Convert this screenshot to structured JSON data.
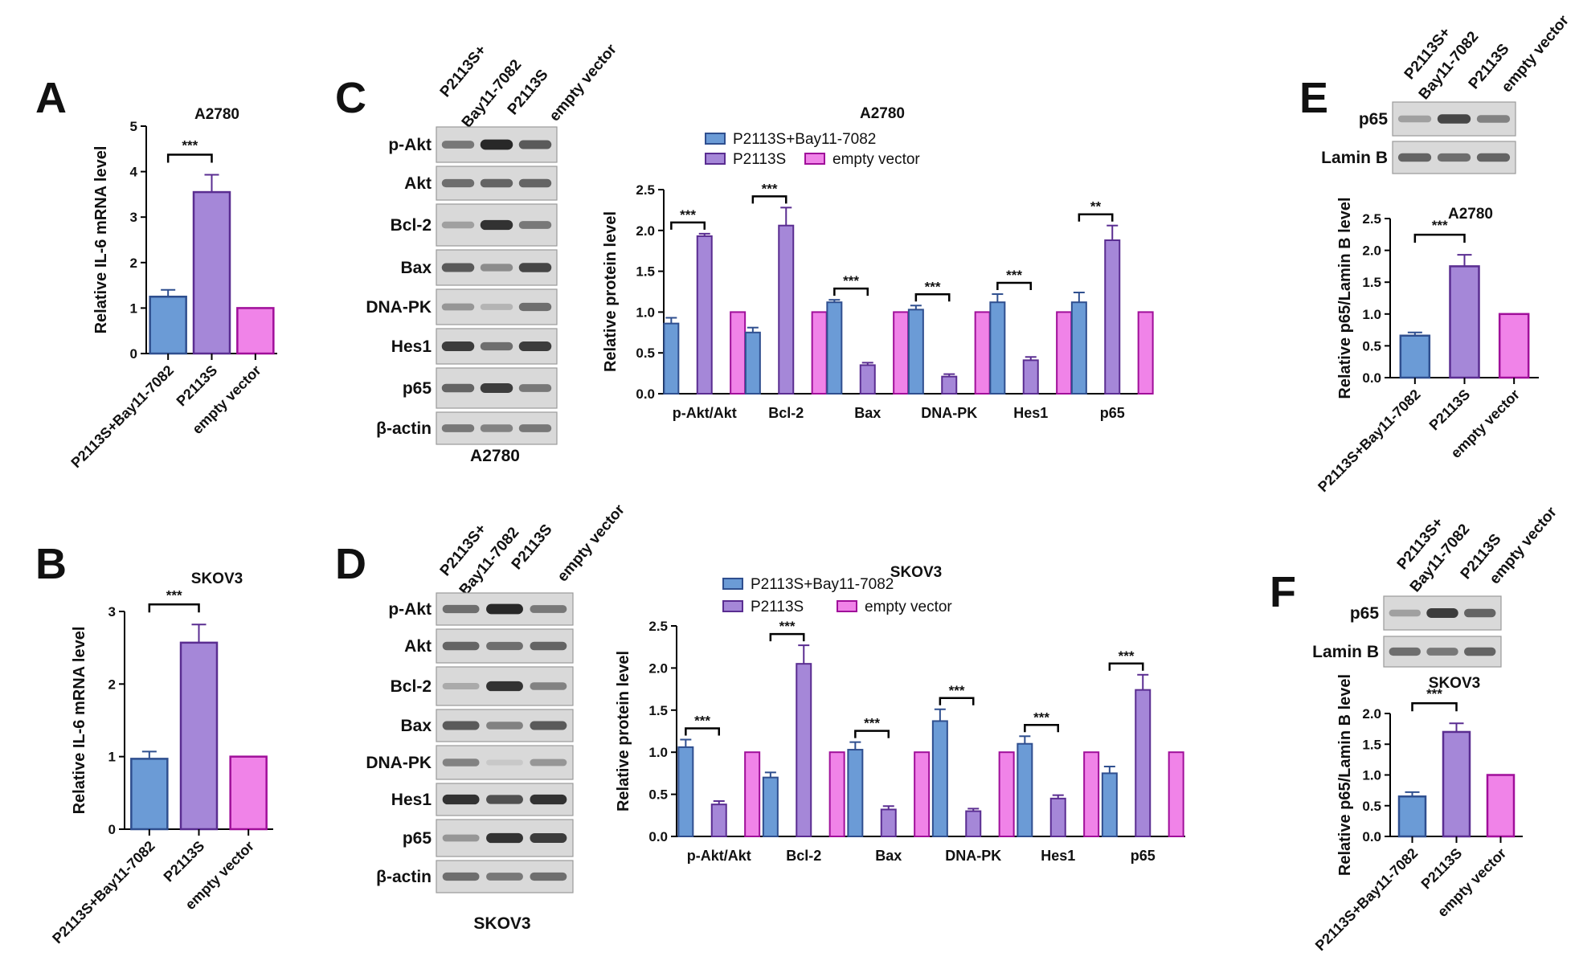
{
  "panel_letters": [
    "A",
    "B",
    "C",
    "D",
    "E",
    "F"
  ],
  "colors": {
    "bay": "#6b9bd6",
    "p2113s": "#a587d8",
    "ev": "#f083e8",
    "bay_stroke": "#2f4f8f",
    "p2113s_stroke": "#5a2d91",
    "ev_stroke": "#a00f9a"
  },
  "blots": [
    {
      "id": "C",
      "cell_label": "A2780",
      "lanes": [
        "P2113S+",
        "Bay11-7082",
        "P2113S",
        "empty vector"
      ],
      "rows": [
        {
          "label": "p-Akt",
          "intensities": [
            0.55,
            0.95,
            0.7
          ]
        },
        {
          "label": "Akt",
          "intensities": [
            0.6,
            0.65,
            0.65
          ]
        },
        {
          "label": "Bcl-2",
          "intensities": [
            0.35,
            0.9,
            0.55
          ]
        },
        {
          "label": "Bax",
          "intensities": [
            0.7,
            0.45,
            0.8
          ]
        },
        {
          "label": "DNA-PK",
          "intensities": [
            0.4,
            0.25,
            0.6
          ]
        },
        {
          "label": "Hes1",
          "intensities": [
            0.85,
            0.6,
            0.85
          ]
        },
        {
          "label": "p65",
          "intensities": [
            0.65,
            0.85,
            0.55
          ]
        },
        {
          "label": "β-actin",
          "intensities": [
            0.55,
            0.5,
            0.55
          ]
        }
      ]
    },
    {
      "id": "D",
      "cell_label": "SKOV3",
      "lanes": [
        "P2113S+",
        "Bay11-7082",
        "P2113S",
        "empty vector"
      ],
      "rows": [
        {
          "label": "p-Akt",
          "intensities": [
            0.6,
            0.95,
            0.55
          ]
        },
        {
          "label": "Akt",
          "intensities": [
            0.65,
            0.6,
            0.65
          ]
        },
        {
          "label": "Bcl-2",
          "intensities": [
            0.3,
            0.9,
            0.5
          ]
        },
        {
          "label": "Bax",
          "intensities": [
            0.7,
            0.5,
            0.7
          ]
        },
        {
          "label": "DNA-PK",
          "intensities": [
            0.5,
            0.15,
            0.4
          ]
        },
        {
          "label": "Hes1",
          "intensities": [
            0.9,
            0.75,
            0.9
          ]
        },
        {
          "label": "p65",
          "intensities": [
            0.4,
            0.9,
            0.85
          ]
        },
        {
          "label": "β-actin",
          "intensities": [
            0.6,
            0.55,
            0.6
          ]
        }
      ]
    },
    {
      "id": "E",
      "cell_label": "",
      "lanes": [
        "P2113S+",
        "Bay11-7082",
        "P2113S",
        "empty vector"
      ],
      "rows": [
        {
          "label": "p65",
          "intensities": [
            0.35,
            0.8,
            0.5
          ]
        },
        {
          "label": "Lamin B",
          "intensities": [
            0.65,
            0.6,
            0.65
          ]
        }
      ]
    },
    {
      "id": "F",
      "cell_label": "",
      "lanes": [
        "P2113S+",
        "Bay11-7082",
        "P2113S",
        "empty vector"
      ],
      "rows": [
        {
          "label": "p65",
          "intensities": [
            0.35,
            0.85,
            0.65
          ]
        },
        {
          "label": "Lamin B",
          "intensities": [
            0.6,
            0.55,
            0.65
          ]
        }
      ]
    }
  ],
  "chart_data": [
    {
      "id": "A",
      "type": "bar",
      "title": "A2780",
      "ylabel": "Relative IL-6 mRNA level",
      "categories": [
        "P2113S+Bay11-7082",
        "P2113S",
        "empty vector"
      ],
      "values": [
        1.25,
        3.55,
        1.0
      ],
      "errors": [
        0.15,
        0.38,
        0.0
      ],
      "ylim": [
        0,
        5
      ],
      "yticks": [
        0,
        1,
        2,
        3,
        4,
        5
      ],
      "significance": [
        {
          "from": 0,
          "to": 1,
          "label": "***"
        }
      ]
    },
    {
      "id": "B",
      "type": "bar",
      "title": "SKOV3",
      "ylabel": "Relative IL-6 mRNA level",
      "categories": [
        "P2113S+Bay11-7082",
        "P2113S",
        "empty vector"
      ],
      "values": [
        0.97,
        2.57,
        1.0
      ],
      "errors": [
        0.1,
        0.25,
        0.0
      ],
      "ylim": [
        0,
        3
      ],
      "yticks": [
        0,
        1,
        2,
        3
      ],
      "significance": [
        {
          "from": 0,
          "to": 1,
          "label": "***"
        }
      ]
    },
    {
      "id": "C",
      "type": "bar",
      "title": "A2780",
      "ylabel": "Relative protein level",
      "categories": [
        "p-Akt/Akt",
        "Bcl-2",
        "Bax",
        "DNA-PK",
        "Hes1",
        "p65"
      ],
      "legend_placement": "top",
      "series": [
        {
          "name": "P2113S+Bay11-7082",
          "values": [
            0.86,
            0.75,
            1.12,
            1.03,
            1.12,
            1.12
          ],
          "errors": [
            0.07,
            0.06,
            0.03,
            0.05,
            0.1,
            0.12
          ]
        },
        {
          "name": "P2113S",
          "values": [
            1.93,
            2.06,
            0.35,
            0.21,
            0.41,
            1.88
          ],
          "errors": [
            0.03,
            0.22,
            0.03,
            0.03,
            0.04,
            0.18
          ]
        },
        {
          "name": "empty vector",
          "values": [
            1.0,
            1.0,
            1.0,
            1.0,
            1.0,
            1.0
          ],
          "errors": [
            0,
            0,
            0,
            0,
            0,
            0
          ]
        }
      ],
      "ylim": [
        0,
        2.5
      ],
      "yticks": [
        0.0,
        0.5,
        1.0,
        1.5,
        2.0,
        2.5
      ],
      "significance": [
        {
          "cat": 0,
          "label": "***"
        },
        {
          "cat": 1,
          "label": "***"
        },
        {
          "cat": 2,
          "label": "***"
        },
        {
          "cat": 3,
          "label": "***"
        },
        {
          "cat": 4,
          "label": "***"
        },
        {
          "cat": 5,
          "label": "**"
        }
      ]
    },
    {
      "id": "D",
      "type": "bar",
      "title": "SKOV3",
      "ylabel": "Relative protein level",
      "categories": [
        "p-Akt/Akt",
        "Bcl-2",
        "Bax",
        "DNA-PK",
        "Hes1",
        "p65"
      ],
      "legend_placement": "top",
      "series": [
        {
          "name": "P2113S+Bay11-7082",
          "values": [
            1.06,
            0.7,
            1.03,
            1.37,
            1.1,
            0.75
          ],
          "errors": [
            0.09,
            0.06,
            0.09,
            0.14,
            0.09,
            0.08
          ]
        },
        {
          "name": "P2113S",
          "values": [
            0.38,
            2.05,
            0.32,
            0.3,
            0.45,
            1.74
          ],
          "errors": [
            0.04,
            0.22,
            0.04,
            0.03,
            0.04,
            0.18
          ]
        },
        {
          "name": "empty vector",
          "values": [
            1.0,
            1.0,
            1.0,
            1.0,
            1.0,
            1.0
          ],
          "errors": [
            0,
            0,
            0,
            0,
            0,
            0
          ]
        }
      ],
      "ylim": [
        0,
        2.5
      ],
      "yticks": [
        0.0,
        0.5,
        1.0,
        1.5,
        2.0,
        2.5
      ],
      "significance": [
        {
          "cat": 0,
          "label": "***"
        },
        {
          "cat": 1,
          "label": "***"
        },
        {
          "cat": 2,
          "label": "***"
        },
        {
          "cat": 3,
          "label": "***"
        },
        {
          "cat": 4,
          "label": "***"
        },
        {
          "cat": 5,
          "label": "***"
        }
      ]
    },
    {
      "id": "E",
      "type": "bar",
      "title": "A2780",
      "ylabel": "Relative p65/Lamin B level",
      "categories": [
        "P2113S+Bay11-7082",
        "P2113S",
        "empty vector"
      ],
      "values": [
        0.66,
        1.75,
        1.0
      ],
      "errors": [
        0.05,
        0.18,
        0.0
      ],
      "ylim": [
        0,
        2.5
      ],
      "yticks": [
        0.0,
        0.5,
        1.0,
        1.5,
        2.0,
        2.5
      ],
      "significance": [
        {
          "from": 0,
          "to": 1,
          "label": "***"
        }
      ]
    },
    {
      "id": "F",
      "type": "bar",
      "title": "SKOV3",
      "ylabel": "Relative p65/Lamin B level",
      "categories": [
        "P2113S+Bay11-7082",
        "P2113S",
        "empty vector"
      ],
      "values": [
        0.65,
        1.7,
        1.0
      ],
      "errors": [
        0.07,
        0.14,
        0.0
      ],
      "ylim": [
        0,
        2.0
      ],
      "yticks": [
        0.0,
        0.5,
        1.0,
        1.5,
        2.0
      ],
      "significance": [
        {
          "from": 0,
          "to": 1,
          "label": "***"
        }
      ]
    }
  ]
}
